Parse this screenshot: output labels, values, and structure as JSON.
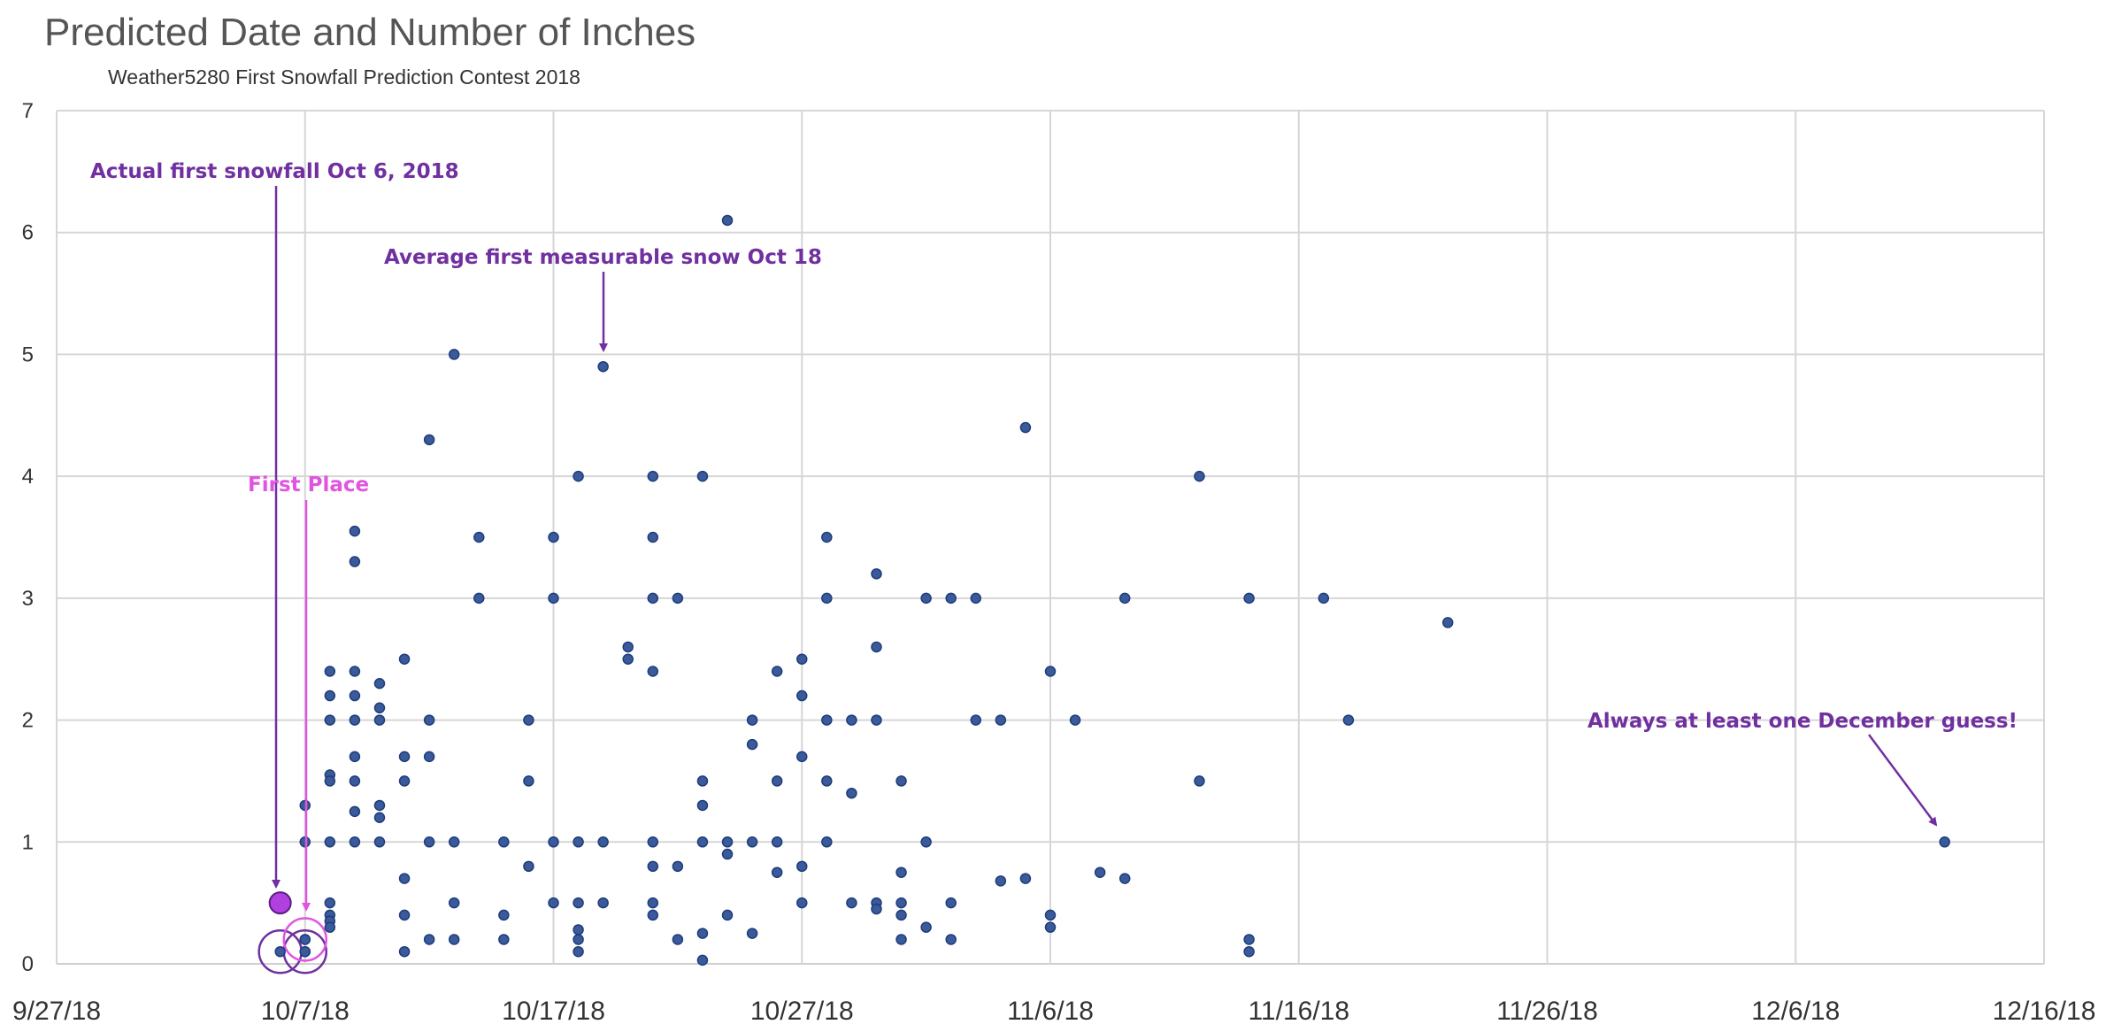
{
  "chart_data": {
    "type": "scatter",
    "title": "Predicted Date and Number of Inches",
    "subtitle": "Weather5280 First Snowfall Prediction Contest 2018",
    "xlabel": "",
    "ylabel": "",
    "x_ticks": [
      "9/27/18",
      "10/7/18",
      "10/17/18",
      "10/27/18",
      "11/6/18",
      "11/16/18",
      "11/26/18",
      "12/6/18",
      "12/16/18"
    ],
    "y_ticks": [
      0,
      1,
      2,
      3,
      4,
      5,
      6,
      7
    ],
    "xlim": [
      "2018-09-27",
      "2018-12-16"
    ],
    "ylim": [
      0,
      7
    ],
    "grid": true,
    "colors": {
      "points": "#3a5a9c",
      "points_stroke": "#1f3d78",
      "annotation": "#7030a0",
      "first_place": "#e055e0",
      "actual": "#b040e0"
    },
    "series": [
      {
        "points": [
          [
            "2018-10-07",
            1.3
          ],
          [
            "2018-10-07",
            1.0
          ],
          [
            "2018-10-07",
            0.2
          ],
          [
            "2018-10-07",
            0.1
          ],
          [
            "2018-10-08",
            2.4
          ],
          [
            "2018-10-08",
            2.2
          ],
          [
            "2018-10-08",
            2.0
          ],
          [
            "2018-10-08",
            1.55
          ],
          [
            "2018-10-08",
            1.5
          ],
          [
            "2018-10-08",
            1.0
          ],
          [
            "2018-10-08",
            0.5
          ],
          [
            "2018-10-08",
            0.4
          ],
          [
            "2018-10-08",
            0.35
          ],
          [
            "2018-10-08",
            0.3
          ],
          [
            "2018-10-09",
            3.55
          ],
          [
            "2018-10-09",
            3.3
          ],
          [
            "2018-10-09",
            2.4
          ],
          [
            "2018-10-09",
            2.2
          ],
          [
            "2018-10-09",
            2.0
          ],
          [
            "2018-10-09",
            1.7
          ],
          [
            "2018-10-09",
            1.5
          ],
          [
            "2018-10-09",
            1.25
          ],
          [
            "2018-10-09",
            1.0
          ],
          [
            "2018-10-10",
            2.3
          ],
          [
            "2018-10-10",
            2.1
          ],
          [
            "2018-10-10",
            2.0
          ],
          [
            "2018-10-10",
            1.3
          ],
          [
            "2018-10-10",
            1.2
          ],
          [
            "2018-10-10",
            1.0
          ],
          [
            "2018-10-11",
            2.5
          ],
          [
            "2018-10-11",
            1.7
          ],
          [
            "2018-10-11",
            1.5
          ],
          [
            "2018-10-11",
            0.7
          ],
          [
            "2018-10-11",
            0.4
          ],
          [
            "2018-10-11",
            0.1
          ],
          [
            "2018-10-12",
            4.3
          ],
          [
            "2018-10-12",
            2.0
          ],
          [
            "2018-10-12",
            1.7
          ],
          [
            "2018-10-12",
            1.0
          ],
          [
            "2018-10-12",
            0.2
          ],
          [
            "2018-10-13",
            5.0
          ],
          [
            "2018-10-13",
            1.0
          ],
          [
            "2018-10-13",
            0.5
          ],
          [
            "2018-10-13",
            0.2
          ],
          [
            "2018-10-14",
            3.5
          ],
          [
            "2018-10-14",
            3.0
          ],
          [
            "2018-10-15",
            1.0
          ],
          [
            "2018-10-15",
            0.4
          ],
          [
            "2018-10-15",
            0.2
          ],
          [
            "2018-10-16",
            2.0
          ],
          [
            "2018-10-16",
            1.5
          ],
          [
            "2018-10-16",
            0.8
          ],
          [
            "2018-10-17",
            3.5
          ],
          [
            "2018-10-17",
            3.0
          ],
          [
            "2018-10-17",
            1.0
          ],
          [
            "2018-10-17",
            0.5
          ],
          [
            "2018-10-18",
            4.0
          ],
          [
            "2018-10-18",
            1.0
          ],
          [
            "2018-10-18",
            0.5
          ],
          [
            "2018-10-18",
            0.28
          ],
          [
            "2018-10-18",
            0.2
          ],
          [
            "2018-10-18",
            0.1
          ],
          [
            "2018-10-19",
            4.9
          ],
          [
            "2018-10-19",
            1.0
          ],
          [
            "2018-10-19",
            0.5
          ],
          [
            "2018-10-20",
            2.6
          ],
          [
            "2018-10-20",
            2.5
          ],
          [
            "2018-10-21",
            4.0
          ],
          [
            "2018-10-21",
            3.5
          ],
          [
            "2018-10-21",
            3.0
          ],
          [
            "2018-10-21",
            2.4
          ],
          [
            "2018-10-21",
            1.0
          ],
          [
            "2018-10-21",
            0.8
          ],
          [
            "2018-10-21",
            0.5
          ],
          [
            "2018-10-21",
            0.4
          ],
          [
            "2018-10-22",
            3.0
          ],
          [
            "2018-10-22",
            0.8
          ],
          [
            "2018-10-22",
            0.2
          ],
          [
            "2018-10-23",
            4.0
          ],
          [
            "2018-10-23",
            1.5
          ],
          [
            "2018-10-23",
            1.3
          ],
          [
            "2018-10-23",
            1.0
          ],
          [
            "2018-10-23",
            0.25
          ],
          [
            "2018-10-23",
            0.03
          ],
          [
            "2018-10-24",
            6.1
          ],
          [
            "2018-10-24",
            1.0
          ],
          [
            "2018-10-24",
            0.9
          ],
          [
            "2018-10-24",
            0.4
          ],
          [
            "2018-10-25",
            2.0
          ],
          [
            "2018-10-25",
            1.8
          ],
          [
            "2018-10-25",
            1.0
          ],
          [
            "2018-10-25",
            0.25
          ],
          [
            "2018-10-26",
            2.4
          ],
          [
            "2018-10-26",
            1.5
          ],
          [
            "2018-10-26",
            1.0
          ],
          [
            "2018-10-26",
            0.75
          ],
          [
            "2018-10-27",
            2.5
          ],
          [
            "2018-10-27",
            2.2
          ],
          [
            "2018-10-27",
            1.7
          ],
          [
            "2018-10-27",
            0.8
          ],
          [
            "2018-10-27",
            0.5
          ],
          [
            "2018-10-28",
            3.5
          ],
          [
            "2018-10-28",
            3.0
          ],
          [
            "2018-10-28",
            2.0
          ],
          [
            "2018-10-28",
            1.5
          ],
          [
            "2018-10-28",
            1.0
          ],
          [
            "2018-10-29",
            2.0
          ],
          [
            "2018-10-29",
            1.4
          ],
          [
            "2018-10-29",
            0.5
          ],
          [
            "2018-10-30",
            3.2
          ],
          [
            "2018-10-30",
            2.6
          ],
          [
            "2018-10-30",
            2.0
          ],
          [
            "2018-10-30",
            0.5
          ],
          [
            "2018-10-30",
            0.45
          ],
          [
            "2018-10-31",
            1.5
          ],
          [
            "2018-10-31",
            0.75
          ],
          [
            "2018-10-31",
            0.5
          ],
          [
            "2018-10-31",
            0.4
          ],
          [
            "2018-10-31",
            0.2
          ],
          [
            "2018-11-01",
            3.0
          ],
          [
            "2018-11-01",
            1.0
          ],
          [
            "2018-11-01",
            0.3
          ],
          [
            "2018-11-02",
            3.0
          ],
          [
            "2018-11-02",
            0.5
          ],
          [
            "2018-11-02",
            0.2
          ],
          [
            "2018-11-03",
            3.0
          ],
          [
            "2018-11-03",
            2.0
          ],
          [
            "2018-11-04",
            2.0
          ],
          [
            "2018-11-04",
            0.68
          ],
          [
            "2018-11-05",
            4.4
          ],
          [
            "2018-11-05",
            0.7
          ],
          [
            "2018-11-06",
            2.4
          ],
          [
            "2018-11-06",
            0.4
          ],
          [
            "2018-11-06",
            0.3
          ],
          [
            "2018-11-07",
            2.0
          ],
          [
            "2018-11-08",
            0.75
          ],
          [
            "2018-11-09",
            3.0
          ],
          [
            "2018-11-09",
            0.7
          ],
          [
            "2018-11-12",
            4.0
          ],
          [
            "2018-11-12",
            1.5
          ],
          [
            "2018-11-14",
            3.0
          ],
          [
            "2018-11-14",
            0.2
          ],
          [
            "2018-11-14",
            0.1
          ],
          [
            "2018-11-17",
            3.0
          ],
          [
            "2018-11-18",
            2.0
          ],
          [
            "2018-11-22",
            2.8
          ],
          [
            "2018-12-12",
            1.0
          ]
        ]
      }
    ],
    "actual_point": [
      "2018-10-06",
      0.5
    ],
    "circled_points": [
      [
        "2018-10-06",
        0.1
      ],
      [
        "2018-10-07",
        0.1
      ],
      [
        "2018-10-07",
        0.2
      ]
    ],
    "annotations": [
      {
        "text": "Actual first snowfall Oct 6, 2018",
        "color": "annotation"
      },
      {
        "text": "Average first measurable snow Oct 18",
        "color": "annotation"
      },
      {
        "text": "First Place",
        "color": "first_place"
      },
      {
        "text": "Always at least one December guess!",
        "color": "annotation"
      }
    ]
  }
}
